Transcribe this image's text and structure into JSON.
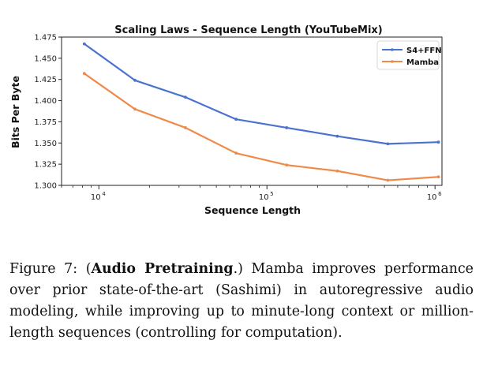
{
  "chart_data": {
    "type": "line",
    "title": "Scaling Laws - Sequence Length (YouTubeMix)",
    "xlabel": "Sequence Length",
    "ylabel": "Bits Per Byte",
    "xscale": "log",
    "xlim": [
      6000,
      1100000
    ],
    "ylim": [
      1.3,
      1.475
    ],
    "yticks": [
      1.3,
      1.325,
      1.35,
      1.375,
      1.4,
      1.425,
      1.45,
      1.475
    ],
    "ytick_labels": [
      "1.300",
      "1.325",
      "1.350",
      "1.375",
      "1.400",
      "1.425",
      "1.450",
      "1.475"
    ],
    "xticks_major": [
      10000,
      100000,
      1000000
    ],
    "xtick_labels": [
      {
        "base": "10",
        "exp": "4"
      },
      {
        "base": "10",
        "exp": "5"
      },
      {
        "base": "10",
        "exp": "6"
      }
    ],
    "x": [
      8192,
      16384,
      32768,
      65536,
      131072,
      262144,
      524288,
      1048576
    ],
    "series": [
      {
        "name": "S4+FFN",
        "color": "#4c72d0",
        "values": [
          1.467,
          1.424,
          1.404,
          1.378,
          1.368,
          1.358,
          1.349,
          1.351
        ]
      },
      {
        "name": "Mamba",
        "color": "#ef8a4a",
        "values": [
          1.432,
          1.39,
          1.368,
          1.338,
          1.324,
          1.317,
          1.306,
          1.31
        ]
      }
    ],
    "legend": "top-right",
    "grid": false
  },
  "caption": {
    "prefix": "Figure 7: (",
    "bold": "Audio Pretraining",
    "suffix": ".) Mamba improves performance over prior state-of-the-art (Sashimi) in autoregressive audio modeling, while improving up to minute-long context or million-length sequences (controlling for computation)."
  }
}
